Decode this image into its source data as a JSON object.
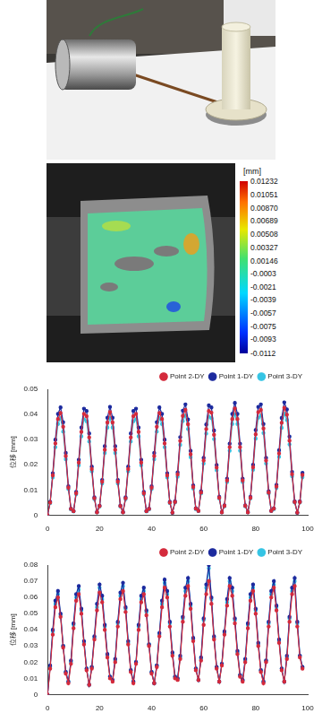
{
  "dic_image": {
    "colorbar": {
      "unit": "[mm]",
      "range": [
        -0.0112,
        0.01232
      ],
      "ticks": [
        0.01232,
        0.01051,
        {
          "value": 0.0087,
          "label": "0.00870"
        },
        0.00689,
        0.00508,
        0.00327,
        0.00146,
        -0.0003,
        -0.0021,
        -0.0039,
        -0.0057,
        -0.0075,
        -0.0093,
        -0.0112
      ]
    }
  },
  "chart_data": [
    {
      "type": "line",
      "y_label": "位移 [mm]",
      "xlim": [
        0,
        100
      ],
      "xticks": [
        0,
        20,
        40,
        60,
        80,
        100
      ],
      "ylim": [
        0,
        0.05
      ],
      "yticks": [
        0,
        0.01,
        0.02,
        0.03,
        0.04,
        0.05
      ],
      "grid": false,
      "legend": "top-right",
      "x": [
        0,
        1,
        2,
        3,
        4,
        5,
        6,
        7,
        8,
        9,
        10,
        11,
        12,
        13,
        14,
        15,
        16,
        17,
        18,
        19,
        20,
        21,
        22,
        23,
        24,
        25,
        26,
        27,
        28,
        29,
        30,
        31,
        32,
        33,
        34,
        35,
        36,
        37,
        38,
        39,
        40,
        41,
        42,
        43,
        44,
        45,
        46,
        47,
        48,
        49,
        50,
        51,
        52,
        53,
        54,
        55,
        56,
        57,
        58,
        59,
        60,
        61,
        62,
        63,
        64,
        65,
        66,
        67,
        68,
        69,
        70,
        71,
        72,
        73,
        74,
        75,
        76,
        77,
        78,
        79,
        80,
        81,
        82,
        83,
        84,
        85,
        86,
        87,
        88,
        89,
        90,
        91,
        92,
        93,
        94,
        95,
        96,
        97,
        98
      ],
      "series": [
        {
          "name": "Point 2-DY",
          "color": "#d42a3c",
          "marker": "circle",
          "line_style": "solid",
          "values": [
            0,
            0.005,
            0.0158,
            0.0285,
            0.0382,
            0.0406,
            0.0351,
            0.0235,
            0.0109,
            0.0025,
            0.0016,
            0.0087,
            0.0209,
            0.0331,
            0.0402,
            0.0393,
            0.0309,
            0.0183,
            0.0067,
            0.0011,
            0.0036,
            0.0133,
            0.026,
            0.0368,
            0.0409,
            0.0368,
            0.026,
            0.0133,
            0.0036,
            0.0011,
            0.0067,
            0.0183,
            0.0309,
            0.0393,
            0.0402,
            0.0331,
            0.0209,
            0.0087,
            0.0016,
            0.0025,
            0.0109,
            0.0235,
            0.0351,
            0.0406,
            0.0382,
            0.0285,
            0.0158,
            0.005,
            0.001,
            0.0052,
            0.0162,
            0.0295,
            0.0394,
            0.0418,
            0.0361,
            0.0242,
            0.0112,
            0.0026,
            0.0017,
            0.009,
            0.0217,
            0.0342,
            0.0414,
            0.0407,
            0.0319,
            0.0189,
            0.0069,
            0.0011,
            0.0037,
            0.0138,
            0.027,
            0.0382,
            0.0424,
            0.0382,
            0.027,
            0.0138,
            0.0037,
            0.0011,
            0.0069,
            0.019,
            0.0321,
            0.0409,
            0.0418,
            0.0344,
            0.0217,
            0.009,
            0.0017,
            0.0026,
            0.0114,
            0.0245,
            0.0367,
            0.0426,
            0.0399,
            0.0296,
            0.0163,
            0.0052,
            0.001,
            0.0052,
            0.016
          ]
        },
        {
          "name": "Point 1-DY",
          "color": "#1c2a9e",
          "marker": "circle",
          "line_style": "solid",
          "values": [
            0,
            0.0053,
            0.0166,
            0.03,
            0.0402,
            0.0428,
            0.0369,
            0.0247,
            0.0115,
            0.0026,
            0.0017,
            0.0092,
            0.022,
            0.0348,
            0.0423,
            0.0414,
            0.0325,
            0.0193,
            0.0071,
            0.0012,
            0.0038,
            0.014,
            0.0274,
            0.0387,
            0.043,
            0.0387,
            0.0274,
            0.014,
            0.0038,
            0.0012,
            0.0071,
            0.0193,
            0.0325,
            0.0414,
            0.0423,
            0.0348,
            0.022,
            0.0092,
            0.0017,
            0.0026,
            0.0115,
            0.0247,
            0.0369,
            0.0428,
            0.0402,
            0.03,
            0.0166,
            0.0053,
            0.001,
            0.0055,
            0.017,
            0.031,
            0.0415,
            0.044,
            0.038,
            0.0255,
            0.0118,
            0.0027,
            0.0018,
            0.0095,
            0.0228,
            0.036,
            0.0436,
            0.0428,
            0.0336,
            0.0199,
            0.0073,
            0.0012,
            0.0039,
            0.0145,
            0.0284,
            0.0402,
            0.0446,
            0.0402,
            0.0284,
            0.0145,
            0.0039,
            0.0012,
            0.0073,
            0.02,
            0.0338,
            0.043,
            0.044,
            0.0362,
            0.0228,
            0.0095,
            0.0018,
            0.0027,
            0.012,
            0.0258,
            0.0386,
            0.0448,
            0.042,
            0.0312,
            0.0172,
            0.0055,
            0.001,
            0.0055,
            0.0168
          ]
        },
        {
          "name": "Point 3-DY",
          "color": "#35c4e4",
          "marker": "circle",
          "line_style": "solid",
          "values": [
            0,
            0.0048,
            0.015,
            0.027,
            0.0362,
            0.0385,
            0.0332,
            0.0222,
            0.0104,
            0.0023,
            0.0015,
            0.0083,
            0.0198,
            0.0313,
            0.0381,
            0.0373,
            0.0293,
            0.0174,
            0.0064,
            0.0011,
            0.0034,
            0.0126,
            0.0247,
            0.0348,
            0.0387,
            0.0348,
            0.0247,
            0.0126,
            0.0034,
            0.0011,
            0.0064,
            0.0174,
            0.0293,
            0.0373,
            0.0381,
            0.0313,
            0.0198,
            0.0083,
            0.0015,
            0.0023,
            0.0104,
            0.0222,
            0.0332,
            0.0385,
            0.0362,
            0.027,
            0.015,
            0.0048,
            0.0009,
            0.005,
            0.0153,
            0.0279,
            0.0374,
            0.0396,
            0.0342,
            0.023,
            0.0106,
            0.0024,
            0.0016,
            0.0086,
            0.0205,
            0.0324,
            0.0392,
            0.0385,
            0.0302,
            0.0179,
            0.0066,
            0.0011,
            0.0035,
            0.0131,
            0.0256,
            0.0362,
            0.0401,
            0.0362,
            0.0256,
            0.0131,
            0.0035,
            0.0011,
            0.0066,
            0.018,
            0.0304,
            0.0387,
            0.0396,
            0.0326,
            0.0205,
            0.0086,
            0.0016,
            0.0024,
            0.0108,
            0.0232,
            0.0347,
            0.0403,
            0.0378,
            0.0281,
            0.0155,
            0.005,
            0.0009,
            0.005,
            0.0151
          ]
        }
      ]
    },
    {
      "type": "line",
      "y_label": "位移 [mm]",
      "xlim": [
        0,
        100
      ],
      "xticks": [
        0,
        20,
        40,
        60,
        80,
        100
      ],
      "ylim": [
        0,
        0.08
      ],
      "yticks": [
        0,
        0.01,
        0.02,
        0.03,
        0.04,
        0.05,
        0.06,
        0.07,
        0.08
      ],
      "grid": false,
      "legend": "top-right",
      "x": [
        0,
        1,
        2,
        3,
        4,
        5,
        6,
        7,
        8,
        9,
        10,
        11,
        12,
        13,
        14,
        15,
        16,
        17,
        18,
        19,
        20,
        21,
        22,
        23,
        24,
        25,
        26,
        27,
        28,
        29,
        30,
        31,
        32,
        33,
        34,
        35,
        36,
        37,
        38,
        39,
        40,
        41,
        42,
        43,
        44,
        45,
        46,
        47,
        48,
        49,
        50,
        51,
        52,
        53,
        54,
        55,
        56,
        57,
        58,
        59,
        60,
        61,
        62,
        63,
        64,
        65,
        66,
        67,
        68,
        69,
        70,
        71,
        72,
        73,
        74,
        75,
        76,
        77,
        78,
        79,
        80,
        81,
        82,
        83,
        84,
        85,
        86,
        87,
        88,
        89,
        90,
        91,
        92,
        93,
        94,
        95,
        96,
        97,
        98
      ],
      "series": [
        {
          "name": "Point 2-DY",
          "color": "#d42a3c",
          "marker": "circle",
          "line_style": "solid",
          "values": [
            0,
            0.016,
            0.037,
            0.054,
            0.06,
            0.048,
            0.029,
            0.013,
            0.007,
            0.019,
            0.041,
            0.058,
            0.062,
            0.05,
            0.031,
            0.015,
            0.006,
            0.016,
            0.034,
            0.052,
            0.063,
            0.057,
            0.04,
            0.023,
            0.01,
            0.008,
            0.02,
            0.042,
            0.059,
            0.064,
            0.051,
            0.031,
            0.014,
            0.007,
            0.019,
            0.04,
            0.057,
            0.062,
            0.049,
            0.03,
            0.013,
            0.007,
            0.017,
            0.036,
            0.054,
            0.066,
            0.06,
            0.042,
            0.024,
            0.01,
            0.009,
            0.022,
            0.045,
            0.061,
            0.067,
            0.053,
            0.033,
            0.015,
            0.009,
            0.021,
            0.043,
            0.062,
            0.07,
            0.056,
            0.034,
            0.016,
            0.008,
            0.018,
            0.037,
            0.055,
            0.067,
            0.061,
            0.044,
            0.025,
            0.011,
            0.008,
            0.02,
            0.041,
            0.058,
            0.064,
            0.05,
            0.03,
            0.014,
            0.007,
            0.02,
            0.042,
            0.06,
            0.066,
            0.052,
            0.032,
            0.015,
            0.008,
            0.022,
            0.045,
            0.062,
            0.067,
            0.042,
            0.023,
            0.016
          ]
        },
        {
          "name": "Point 1-DY",
          "color": "#1c2a9e",
          "marker": "circle",
          "line_style": "solid",
          "values": [
            0,
            0.018,
            0.04,
            0.058,
            0.064,
            0.05,
            0.03,
            0.014,
            0.008,
            0.021,
            0.044,
            0.062,
            0.067,
            0.053,
            0.033,
            0.016,
            0.006,
            0.017,
            0.036,
            0.056,
            0.068,
            0.061,
            0.043,
            0.025,
            0.011,
            0.009,
            0.022,
            0.045,
            0.063,
            0.069,
            0.054,
            0.033,
            0.015,
            0.008,
            0.02,
            0.043,
            0.061,
            0.066,
            0.052,
            0.031,
            0.014,
            0.007,
            0.018,
            0.038,
            0.058,
            0.071,
            0.064,
            0.045,
            0.026,
            0.011,
            0.01,
            0.024,
            0.048,
            0.066,
            0.072,
            0.056,
            0.035,
            0.016,
            0.009,
            0.023,
            0.047,
            0.068,
            0.08,
            0.06,
            0.036,
            0.017,
            0.008,
            0.019,
            0.039,
            0.059,
            0.072,
            0.066,
            0.047,
            0.027,
            0.012,
            0.009,
            0.022,
            0.044,
            0.062,
            0.068,
            0.053,
            0.032,
            0.015,
            0.008,
            0.021,
            0.045,
            0.064,
            0.07,
            0.055,
            0.034,
            0.016,
            0.008,
            0.024,
            0.048,
            0.066,
            0.072,
            0.045,
            0.024,
            0.017
          ]
        },
        {
          "name": "Point 3-DY",
          "color": "#35c4e4",
          "marker": "circle",
          "line_style": "solid",
          "values": [
            0,
            0.017,
            0.039,
            0.056,
            0.062,
            0.049,
            0.03,
            0.014,
            0.008,
            0.02,
            0.043,
            0.06,
            0.065,
            0.052,
            0.032,
            0.016,
            0.006,
            0.017,
            0.035,
            0.054,
            0.066,
            0.059,
            0.042,
            0.024,
            0.011,
            0.009,
            0.021,
            0.044,
            0.061,
            0.067,
            0.053,
            0.032,
            0.015,
            0.008,
            0.02,
            0.042,
            0.059,
            0.064,
            0.051,
            0.031,
            0.014,
            0.007,
            0.018,
            0.037,
            0.056,
            0.069,
            0.062,
            0.044,
            0.025,
            0.011,
            0.01,
            0.023,
            0.047,
            0.064,
            0.07,
            0.055,
            0.034,
            0.016,
            0.009,
            0.022,
            0.046,
            0.066,
            0.078,
            0.059,
            0.035,
            0.017,
            0.008,
            0.019,
            0.038,
            0.057,
            0.07,
            0.064,
            0.046,
            0.026,
            0.012,
            0.009,
            0.021,
            0.043,
            0.06,
            0.066,
            0.052,
            0.031,
            0.015,
            0.008,
            0.021,
            0.044,
            0.062,
            0.068,
            0.054,
            0.033,
            0.016,
            0.008,
            0.023,
            0.047,
            0.064,
            0.07,
            0.044,
            0.024,
            0.017
          ]
        }
      ]
    }
  ]
}
